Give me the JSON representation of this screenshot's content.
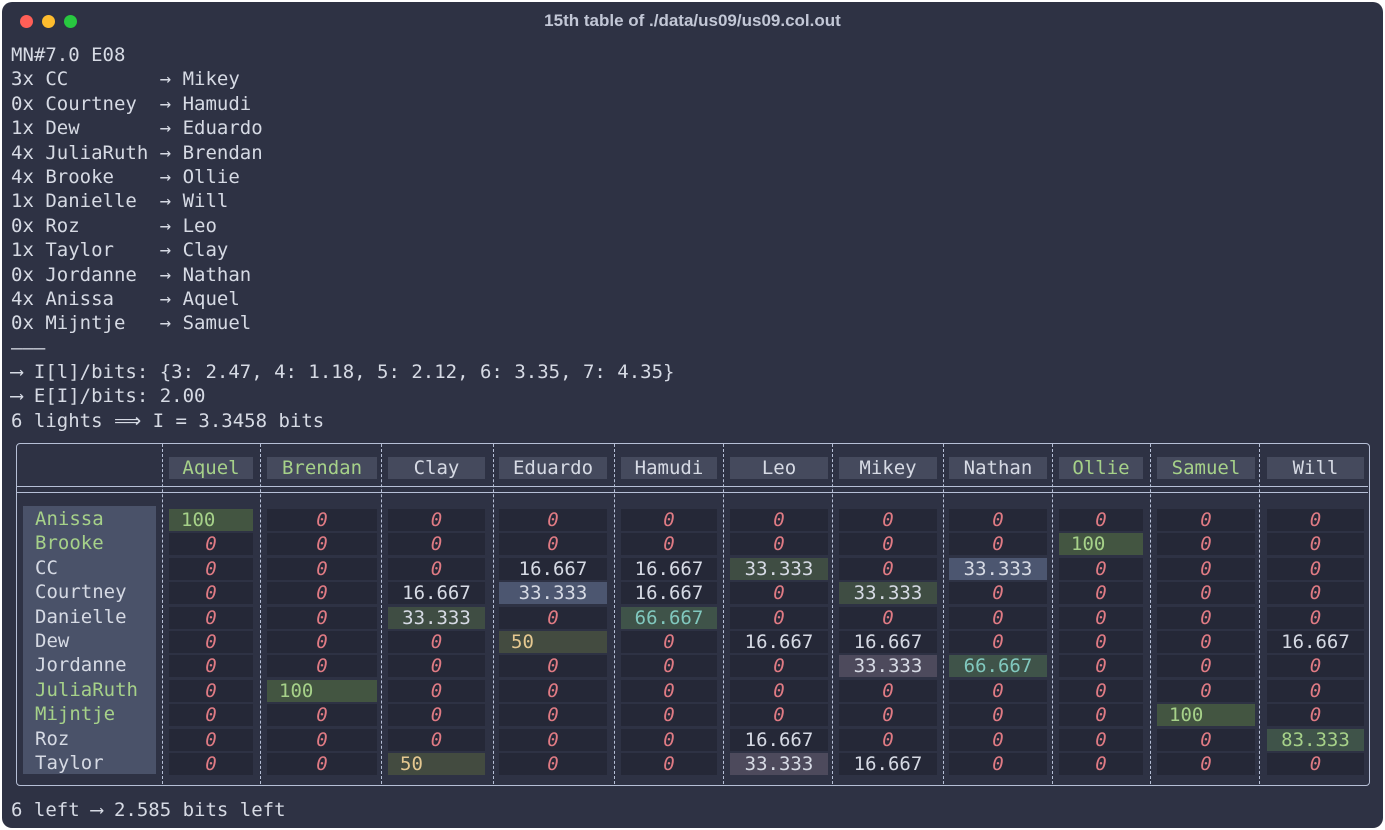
{
  "window": {
    "title": "15th table of ./data/us09/us09.col.out"
  },
  "log_lines": [
    "MN#7.0 E08",
    "3x CC        → Mikey",
    "0x Courtney  → Hamudi",
    "1x Dew       → Eduardo",
    "4x JuliaRuth → Brendan",
    "4x Brooke    → Ollie",
    "1x Danielle  → Will",
    "0x Roz       → Leo",
    "1x Taylor    → Clay",
    "0x Jordanne  → Nathan",
    "4x Anissa    → Aquel",
    "0x Mijntje   → Samuel",
    "———",
    "⟶ I[l]/bits: {3: 2.47, 4: 1.18, 5: 2.12, 6: 3.35, 7: 4.35}",
    "⟶ E[I]/bits: 2.00",
    "6 lights ⟹ I = 3.3458 bits"
  ],
  "table": {
    "columns": [
      "Aquel",
      "Brendan",
      "Clay",
      "Eduardo",
      "Hamudi",
      "Leo",
      "Mikey",
      "Nathan",
      "Ollie",
      "Samuel",
      "Will"
    ],
    "rows": [
      {
        "name": "Anissa",
        "cells": [
          "100",
          "0",
          "0",
          "0",
          "0",
          "0",
          "0",
          "0",
          "0",
          "0",
          "0"
        ]
      },
      {
        "name": "Brooke",
        "cells": [
          "0",
          "0",
          "0",
          "0",
          "0",
          "0",
          "0",
          "0",
          "100",
          "0",
          "0"
        ]
      },
      {
        "name": "CC",
        "cells": [
          "0",
          "0",
          "0",
          "16.667",
          "16.667",
          "33.333",
          "0",
          "33.333",
          "0",
          "0",
          "0"
        ]
      },
      {
        "name": "Courtney",
        "cells": [
          "0",
          "0",
          "16.667",
          "33.333",
          "16.667",
          "0",
          "33.333",
          "0",
          "0",
          "0",
          "0"
        ]
      },
      {
        "name": "Danielle",
        "cells": [
          "0",
          "0",
          "33.333",
          "0",
          "66.667",
          "0",
          "0",
          "0",
          "0",
          "0",
          "0"
        ]
      },
      {
        "name": "Dew",
        "cells": [
          "0",
          "0",
          "0",
          "50",
          "0",
          "16.667",
          "16.667",
          "0",
          "0",
          "0",
          "16.667"
        ]
      },
      {
        "name": "Jordanne",
        "cells": [
          "0",
          "0",
          "0",
          "0",
          "0",
          "0",
          "33.333",
          "66.667",
          "0",
          "0",
          "0"
        ]
      },
      {
        "name": "JuliaRuth",
        "cells": [
          "0",
          "100",
          "0",
          "0",
          "0",
          "0",
          "0",
          "0",
          "0",
          "0",
          "0"
        ]
      },
      {
        "name": "Mijntje",
        "cells": [
          "0",
          "0",
          "0",
          "0",
          "0",
          "0",
          "0",
          "0",
          "0",
          "100",
          "0"
        ]
      },
      {
        "name": "Roz",
        "cells": [
          "0",
          "0",
          "0",
          "0",
          "0",
          "16.667",
          "0",
          "0",
          "0",
          "0",
          "83.333"
        ]
      },
      {
        "name": "Taylor",
        "cells": [
          "0",
          "0",
          "50",
          "0",
          "0",
          "33.333",
          "16.667",
          "0",
          "0",
          "0",
          "0"
        ]
      }
    ]
  },
  "footer": "6 left ⟶ 2.585 bits left",
  "colors": {
    "background": "#2e3244",
    "text": "#d6dae4",
    "zero": "#e07b84",
    "confirmed": "#a6d189",
    "half": "#e5c890",
    "two_thirds": "#81c8be",
    "header_bg": "#454a5d",
    "row_label_bg": "#4a5269"
  }
}
